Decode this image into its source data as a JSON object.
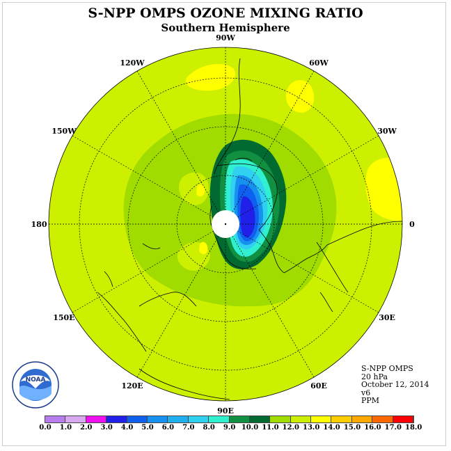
{
  "title": "S-NPP OMPS OZONE MIXING RATIO",
  "subtitle": "Southern Hemisphere",
  "longitude_labels": [
    {
      "text": "90W",
      "lon": -90
    },
    {
      "text": "60W",
      "lon": -60
    },
    {
      "text": "30W",
      "lon": -30
    },
    {
      "text": "0",
      "lon": 0
    },
    {
      "text": "30E",
      "lon": 30
    },
    {
      "text": "60E",
      "lon": 60
    },
    {
      "text": "90E",
      "lon": 90
    },
    {
      "text": "120E",
      "lon": 120
    },
    {
      "text": "150E",
      "lon": 150
    },
    {
      "text": "180",
      "lon": 180
    },
    {
      "text": "150W",
      "lon": -150
    },
    {
      "text": "120W",
      "lon": -120
    }
  ],
  "info": {
    "instrument": "S-NPP OMPS",
    "level": "20 hPa",
    "date": "October 12, 2014",
    "version": "v6",
    "units": "PPM"
  },
  "colorbar": {
    "ticks": [
      "0.0",
      "1.0",
      "2.0",
      "3.0",
      "4.0",
      "5.0",
      "6.0",
      "7.0",
      "8.0",
      "9.0",
      "10.0",
      "11.0",
      "12.0",
      "13.0",
      "14.0",
      "15.0",
      "16.0",
      "17.0",
      "18.0"
    ],
    "colors": [
      "#b87ef0",
      "#d8a8f0",
      "#ee10ee",
      "#2020e8",
      "#1060f0",
      "#1890f0",
      "#20b0f0",
      "#30d0f0",
      "#30f0d0",
      "#109040",
      "#006a30",
      "#a0dc00",
      "#ccee00",
      "#ffff00",
      "#ffcc00",
      "#ffa800",
      "#ff6800",
      "#ff0000",
      "#a06040"
    ]
  },
  "logo": {
    "text": "NOAA",
    "ring_text": "NATIONAL OCEANIC AND ATMOSPHERIC ADMINISTRATION · U.S. DEPARTMENT OF COMMERCE"
  },
  "colors": {
    "background_field": "#ccf000",
    "frame": "#cccccc"
  }
}
